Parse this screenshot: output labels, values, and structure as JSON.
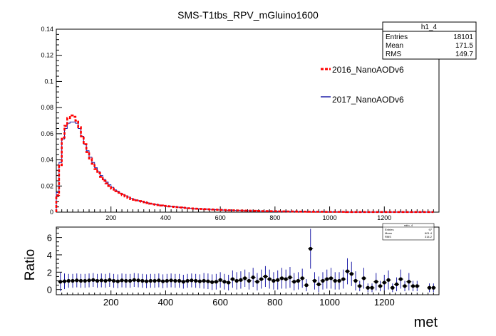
{
  "chart_data": [
    {
      "type": "histogram",
      "title": "SMS-T1tbs_RPV_mGluino1600",
      "xlim": [
        0,
        1400
      ],
      "ylim": [
        0,
        0.14
      ],
      "y_ticks": [
        "0",
        "0.02",
        "0.04",
        "0.06",
        "0.08",
        "0.1",
        "0.12",
        "0.14"
      ],
      "x_ticks": [
        "200",
        "400",
        "600",
        "800",
        "1000",
        "1200"
      ],
      "bin_width": 10,
      "bin_start": 0,
      "legend": [
        {
          "label": "2016_NanoAODv6",
          "color": "#ff0000",
          "style": "dashed"
        },
        {
          "label": "2017_NanoAODv6",
          "color": "#1f1fa8",
          "style": "solid"
        }
      ],
      "stats_box": {
        "title": "h1_4",
        "rows": [
          {
            "label": "Entries",
            "value": "18101"
          },
          {
            "label": "Mean",
            "value": "171.5"
          },
          {
            "label": "RMS",
            "value": "149.7"
          }
        ]
      },
      "series": [
        {
          "name": "2016_NanoAODv6",
          "color": "#ff0000",
          "values": [
            0.013,
            0.036,
            0.057,
            0.066,
            0.072,
            0.074,
            0.073,
            0.07,
            0.065,
            0.058,
            0.052,
            0.046,
            0.041,
            0.037,
            0.033,
            0.03,
            0.027,
            0.024,
            0.022,
            0.02,
            0.018,
            0.016,
            0.015,
            0.014,
            0.013,
            0.012,
            0.011,
            0.01,
            0.0095,
            0.009,
            0.0085,
            0.008,
            0.0075,
            0.007,
            0.0065,
            0.006,
            0.0057,
            0.0054,
            0.0051,
            0.0048,
            0.0046,
            0.0044,
            0.0042,
            0.004,
            0.0038,
            0.0036,
            0.0034,
            0.0032,
            0.003,
            0.0028,
            0.0027,
            0.0026,
            0.0025,
            0.0024,
            0.0023,
            0.0022,
            0.0021,
            0.002,
            0.0019,
            0.0018,
            0.0017,
            0.0016,
            0.0015,
            0.0014,
            0.0014,
            0.0013,
            0.0013,
            0.0012,
            0.0012,
            0.0011,
            0.0011,
            0.001,
            0.001,
            0.0009,
            0.0009,
            0.0008,
            0.0008,
            0.0008,
            0.0007,
            0.0007,
            0.0007,
            0.0006,
            0.0006,
            0.0006,
            0.0005,
            0.0005,
            0.0005,
            0.0005,
            0.0004,
            0.0004,
            0.0004,
            0.0004,
            0.0003,
            0.0003,
            0.0003,
            0.0003,
            0.0003,
            0.0003,
            0.0002,
            0.0002,
            0.0002,
            0.0002,
            0.0002,
            0.0002,
            0.0002,
            0.0002,
            0.0001,
            0.0001,
            0.0001,
            0.0001,
            0.0001,
            0.0001,
            0.0001,
            0.0001,
            0.0001,
            0.0001,
            0.0001,
            0.0001,
            0.0001,
            0.0001,
            0.0001,
            0.0001,
            0.0001,
            0.0001,
            0.0001,
            0.0001,
            0.0001,
            0.0001,
            0.0001,
            0.0001,
            0.0001,
            0.0001,
            0.0001,
            0.0001,
            0.0001,
            0.0001,
            0.0001,
            0.0001
          ]
        },
        {
          "name": "2017_NanoAODv6",
          "color": "#1f1fa8",
          "values": [
            0.015,
            0.038,
            0.056,
            0.064,
            0.068,
            0.069,
            0.069,
            0.068,
            0.064,
            0.058,
            0.052,
            0.047,
            0.042,
            0.038,
            0.034,
            0.031,
            0.028,
            0.025,
            0.023,
            0.021,
            0.019,
            0.017,
            0.016,
            0.0145,
            0.0135,
            0.0125,
            0.0115,
            0.0105,
            0.0097,
            0.0092,
            0.0086,
            0.008,
            0.0075,
            0.0071,
            0.0066,
            0.0062,
            0.0058,
            0.0055,
            0.0052,
            0.0049,
            0.0046,
            0.0044,
            0.0042,
            0.004,
            0.0038,
            0.0036,
            0.0034,
            0.0032,
            0.003,
            0.0029,
            0.0027,
            0.0026,
            0.0025,
            0.0024,
            0.0023,
            0.0022,
            0.0021,
            0.002,
            0.0019,
            0.0018,
            0.0017,
            0.0016,
            0.0015,
            0.0015,
            0.0014,
            0.0013,
            0.0013,
            0.0012,
            0.0012,
            0.0011,
            0.0011,
            0.001,
            0.001,
            0.0009,
            0.0009,
            0.0009,
            0.0008,
            0.0008,
            0.0007,
            0.0007,
            0.0007,
            0.0006,
            0.0006,
            0.0006,
            0.0005,
            0.0005,
            0.0005,
            0.0005,
            0.0004,
            0.0004,
            0.0004,
            0.0004,
            0.0003,
            0.0003,
            0.0003,
            0.0003,
            0.0003,
            0.0003,
            0.0002,
            0.0002,
            0.0002,
            0.0002,
            0.0002,
            0.0002,
            0.0002,
            0.0002,
            0.0001,
            0.0001,
            0.0001,
            0.0001,
            0.0001,
            0.0001,
            0.0001,
            0.0001,
            0.0001,
            0.0001,
            0.0001,
            0.0001,
            0.0001,
            0.0001,
            0.0001,
            0.0001,
            0.0001,
            0.0001,
            0.0001,
            0.0001,
            0.0001,
            0.0001,
            0.0001,
            0.0001,
            0.0001,
            0.0001,
            0.0001,
            0.0001,
            0.0001,
            0.0001,
            0.0001,
            0.0001
          ]
        }
      ]
    },
    {
      "type": "scatter",
      "xlabel": "met",
      "ylabel": "Ratio",
      "xlim": [
        0,
        1400
      ],
      "ylim": [
        -0.6,
        7.2
      ],
      "y_ticks": [
        "0",
        "2",
        "4",
        "6"
      ],
      "x_ticks": [
        "200",
        "400",
        "600",
        "800",
        "1000",
        "1200"
      ],
      "stats_box": {
        "title": "ratio_4",
        "rows": [
          {
            "label": "Entries",
            "value": "97"
          },
          {
            "label": "Mean",
            "value": "601.4"
          },
          {
            "label": "RMS",
            "value": "314.2"
          }
        ]
      },
      "points": [
        {
          "x": 15,
          "y": 0.9,
          "e": 1.1
        },
        {
          "x": 30,
          "y": 0.95,
          "e": 0.9
        },
        {
          "x": 45,
          "y": 1.0,
          "e": 0.8
        },
        {
          "x": 60,
          "y": 1.0,
          "e": 0.8
        },
        {
          "x": 75,
          "y": 1.05,
          "e": 0.8
        },
        {
          "x": 90,
          "y": 1.0,
          "e": 0.8
        },
        {
          "x": 105,
          "y": 1.0,
          "e": 0.8
        },
        {
          "x": 120,
          "y": 1.05,
          "e": 0.8
        },
        {
          "x": 135,
          "y": 1.1,
          "e": 0.8
        },
        {
          "x": 150,
          "y": 1.0,
          "e": 0.8
        },
        {
          "x": 165,
          "y": 1.05,
          "e": 0.8
        },
        {
          "x": 180,
          "y": 1.0,
          "e": 0.8
        },
        {
          "x": 195,
          "y": 1.1,
          "e": 0.8
        },
        {
          "x": 210,
          "y": 1.0,
          "e": 0.8
        },
        {
          "x": 225,
          "y": 0.95,
          "e": 0.8
        },
        {
          "x": 240,
          "y": 1.05,
          "e": 0.8
        },
        {
          "x": 255,
          "y": 1.0,
          "e": 0.8
        },
        {
          "x": 270,
          "y": 1.0,
          "e": 0.8
        },
        {
          "x": 285,
          "y": 1.1,
          "e": 0.8
        },
        {
          "x": 300,
          "y": 1.05,
          "e": 0.8
        },
        {
          "x": 315,
          "y": 1.0,
          "e": 0.8
        },
        {
          "x": 330,
          "y": 0.95,
          "e": 0.8
        },
        {
          "x": 345,
          "y": 1.0,
          "e": 0.8
        },
        {
          "x": 360,
          "y": 1.0,
          "e": 0.8
        },
        {
          "x": 375,
          "y": 1.05,
          "e": 0.8
        },
        {
          "x": 390,
          "y": 0.95,
          "e": 0.8
        },
        {
          "x": 405,
          "y": 1.0,
          "e": 0.8
        },
        {
          "x": 420,
          "y": 1.05,
          "e": 0.8
        },
        {
          "x": 435,
          "y": 1.0,
          "e": 0.8
        },
        {
          "x": 450,
          "y": 1.0,
          "e": 0.8
        },
        {
          "x": 465,
          "y": 0.9,
          "e": 0.8
        },
        {
          "x": 480,
          "y": 1.0,
          "e": 0.8
        },
        {
          "x": 495,
          "y": 1.05,
          "e": 0.8
        },
        {
          "x": 510,
          "y": 1.0,
          "e": 0.8
        },
        {
          "x": 525,
          "y": 0.95,
          "e": 0.8
        },
        {
          "x": 540,
          "y": 1.0,
          "e": 0.9
        },
        {
          "x": 555,
          "y": 0.95,
          "e": 0.9
        },
        {
          "x": 570,
          "y": 0.85,
          "e": 0.9
        },
        {
          "x": 585,
          "y": 0.9,
          "e": 0.9
        },
        {
          "x": 600,
          "y": 1.1,
          "e": 0.9
        },
        {
          "x": 615,
          "y": 0.9,
          "e": 0.9
        },
        {
          "x": 630,
          "y": 0.8,
          "e": 0.9
        },
        {
          "x": 645,
          "y": 1.2,
          "e": 1.0
        },
        {
          "x": 660,
          "y": 1.0,
          "e": 1.0
        },
        {
          "x": 675,
          "y": 1.1,
          "e": 1.0
        },
        {
          "x": 690,
          "y": 1.3,
          "e": 1.0
        },
        {
          "x": 705,
          "y": 1.0,
          "e": 1.0
        },
        {
          "x": 720,
          "y": 1.4,
          "e": 1.1
        },
        {
          "x": 735,
          "y": 0.9,
          "e": 1.0
        },
        {
          "x": 750,
          "y": 1.2,
          "e": 1.1
        },
        {
          "x": 765,
          "y": 1.5,
          "e": 1.2
        },
        {
          "x": 780,
          "y": 1.2,
          "e": 1.1
        },
        {
          "x": 795,
          "y": 1.0,
          "e": 1.0
        },
        {
          "x": 810,
          "y": 1.1,
          "e": 1.1
        },
        {
          "x": 825,
          "y": 1.3,
          "e": 1.2
        },
        {
          "x": 840,
          "y": 1.2,
          "e": 1.1
        },
        {
          "x": 855,
          "y": 1.4,
          "e": 1.2
        },
        {
          "x": 870,
          "y": 0.9,
          "e": 1.0
        },
        {
          "x": 885,
          "y": 1.0,
          "e": 1.0
        },
        {
          "x": 900,
          "y": 1.3,
          "e": 1.1
        },
        {
          "x": 915,
          "y": 0.5,
          "e": 0.7
        },
        {
          "x": 930,
          "y": 4.7,
          "e": 2.3
        },
        {
          "x": 945,
          "y": 1.0,
          "e": 1.0
        },
        {
          "x": 960,
          "y": 0.6,
          "e": 0.9
        },
        {
          "x": 975,
          "y": 1.0,
          "e": 1.0
        },
        {
          "x": 990,
          "y": 1.2,
          "e": 1.1
        },
        {
          "x": 1005,
          "y": 1.3,
          "e": 1.2
        },
        {
          "x": 1020,
          "y": 1.0,
          "e": 1.0
        },
        {
          "x": 1035,
          "y": 1.0,
          "e": 1.0
        },
        {
          "x": 1050,
          "y": 1.2,
          "e": 1.1
        },
        {
          "x": 1065,
          "y": 2.1,
          "e": 1.5
        },
        {
          "x": 1080,
          "y": 1.8,
          "e": 1.4
        },
        {
          "x": 1095,
          "y": 1.0,
          "e": 1.1
        },
        {
          "x": 1110,
          "y": 0.4,
          "e": 0.6
        },
        {
          "x": 1125,
          "y": 1.3,
          "e": 1.2
        },
        {
          "x": 1140,
          "y": 0.2,
          "e": 0.5
        },
        {
          "x": 1155,
          "y": 0.2,
          "e": 0.5
        },
        {
          "x": 1170,
          "y": 0.9,
          "e": 1.0
        },
        {
          "x": 1185,
          "y": 0.4,
          "e": 0.6
        },
        {
          "x": 1200,
          "y": 0.8,
          "e": 0.9
        },
        {
          "x": 1215,
          "y": 1.1,
          "e": 1.1
        },
        {
          "x": 1230,
          "y": 0.2,
          "e": 0.5
        },
        {
          "x": 1245,
          "y": 0.6,
          "e": 0.8
        },
        {
          "x": 1260,
          "y": 1.2,
          "e": 1.1
        },
        {
          "x": 1275,
          "y": 0.4,
          "e": 0.6
        },
        {
          "x": 1290,
          "y": 0.9,
          "e": 1.0
        },
        {
          "x": 1305,
          "y": 0.4,
          "e": 0.6
        },
        {
          "x": 1320,
          "y": 0.4,
          "e": 0.6
        },
        {
          "x": 1365,
          "y": 0.2,
          "e": 0.5
        },
        {
          "x": 1380,
          "y": 0.2,
          "e": 0.5
        }
      ]
    }
  ]
}
